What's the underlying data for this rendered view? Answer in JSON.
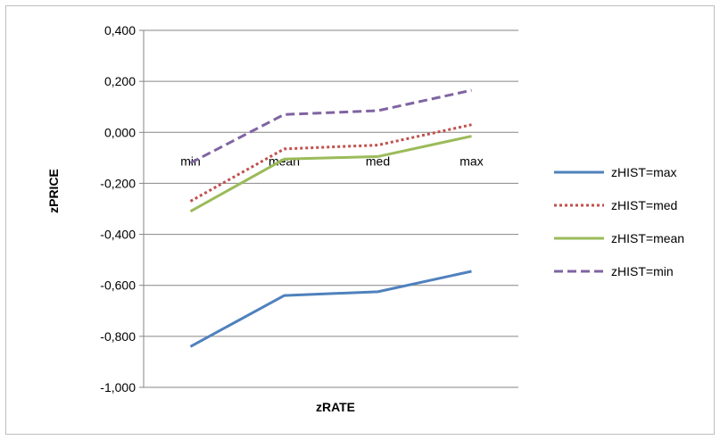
{
  "chart_data": {
    "type": "line",
    "title": "",
    "xlabel": "zRATE",
    "ylabel": "zPRICE",
    "categories": [
      "min",
      "mean",
      "med",
      "max"
    ],
    "ylim": [
      -1.0,
      0.4
    ],
    "yticks": [
      0.4,
      0.2,
      0.0,
      -0.2,
      -0.4,
      -0.6,
      -0.8,
      -1.0
    ],
    "ytick_labels": [
      "0,400",
      "0,200",
      "0,000",
      "-0,200",
      "-0,400",
      "-0,600",
      "-0,800",
      "-1,000"
    ],
    "grid": true,
    "legend_position": "right",
    "series": [
      {
        "name": "zHIST=max",
        "values": [
          -0.84,
          -0.64,
          -0.625,
          -0.545
        ],
        "color": "#4f81bd",
        "style": "solid"
      },
      {
        "name": "zHIST=med",
        "values": [
          -0.27,
          -0.065,
          -0.05,
          0.03
        ],
        "color": "#c0504d",
        "style": "dotted"
      },
      {
        "name": "zHIST=mean",
        "values": [
          -0.31,
          -0.105,
          -0.095,
          -0.015
        ],
        "color": "#9bbb59",
        "style": "solid"
      },
      {
        "name": "zHIST=min",
        "values": [
          -0.12,
          0.07,
          0.085,
          0.165
        ],
        "color": "#8064a2",
        "style": "dashed"
      }
    ]
  }
}
